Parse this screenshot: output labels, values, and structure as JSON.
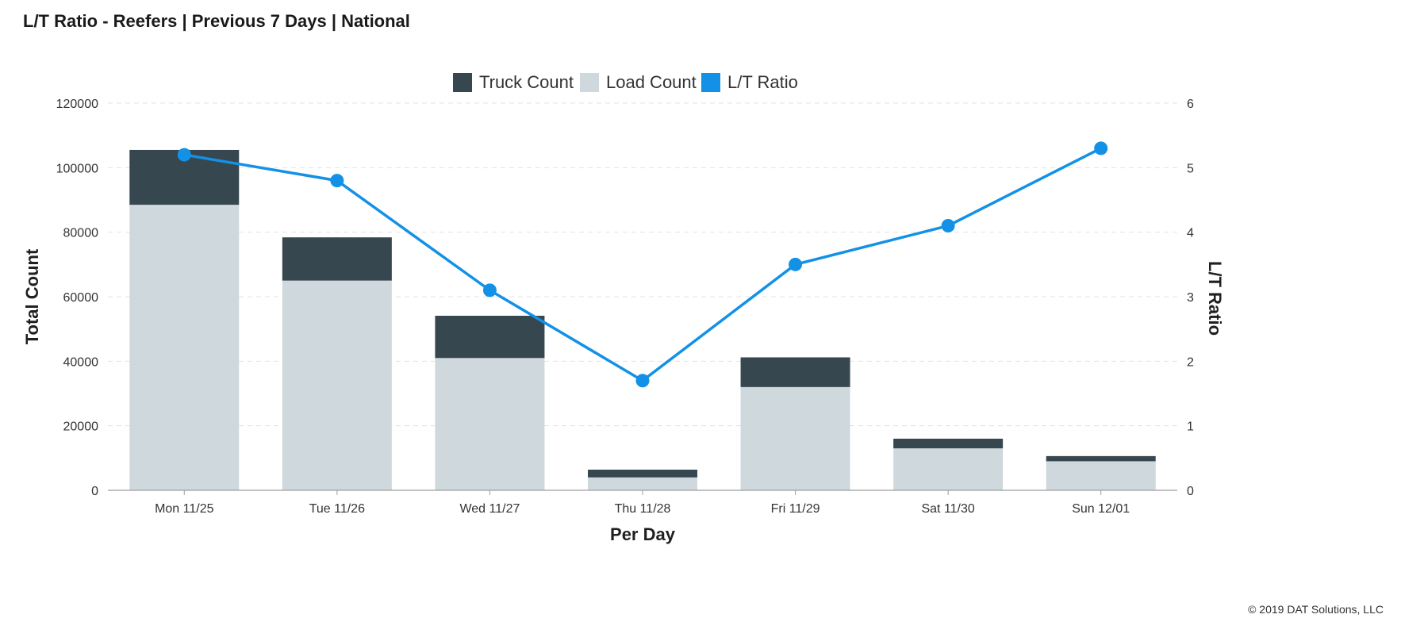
{
  "header": {
    "title": "L/T Ratio - Reefers | Previous 7 Days | National"
  },
  "footer": {
    "copyright": "© 2019 DAT Solutions, LLC"
  },
  "colors": {
    "truck": "#37474f",
    "load": "#cfd8dc",
    "ratio": "#1291e6",
    "grid": "#e3e3e3",
    "axis": "#9e9e9e"
  },
  "chart_data": {
    "type": "bar",
    "stacked": true,
    "categories": [
      "Mon 11/25",
      "Tue 11/26",
      "Wed 11/27",
      "Thu 11/28",
      "Fri 11/29",
      "Sat 11/30",
      "Sun 12/01"
    ],
    "series": [
      {
        "name": "Truck Count",
        "type": "bar",
        "axis": "left",
        "values": [
          17000,
          13400,
          13100,
          2400,
          9200,
          3000,
          1600
        ]
      },
      {
        "name": "Load Count",
        "type": "bar",
        "axis": "left",
        "values": [
          88500,
          65000,
          41000,
          4000,
          32000,
          13000,
          9000
        ]
      },
      {
        "name": "L/T Ratio",
        "type": "line",
        "axis": "right",
        "values": [
          5.2,
          4.8,
          3.1,
          1.7,
          3.5,
          4.1,
          5.3
        ]
      }
    ],
    "xlabel": "Per Day",
    "ylabel": "Total Count",
    "y2label": "L/T Ratio",
    "ylim": [
      0,
      120000
    ],
    "y2lim": [
      0,
      6
    ],
    "yticks": [
      "0",
      "20000",
      "40000",
      "60000",
      "80000",
      "100000",
      "120000"
    ],
    "y2ticks": [
      "0",
      "1",
      "2",
      "3",
      "4",
      "5",
      "6"
    ],
    "grid": true,
    "legend": "top-center"
  }
}
